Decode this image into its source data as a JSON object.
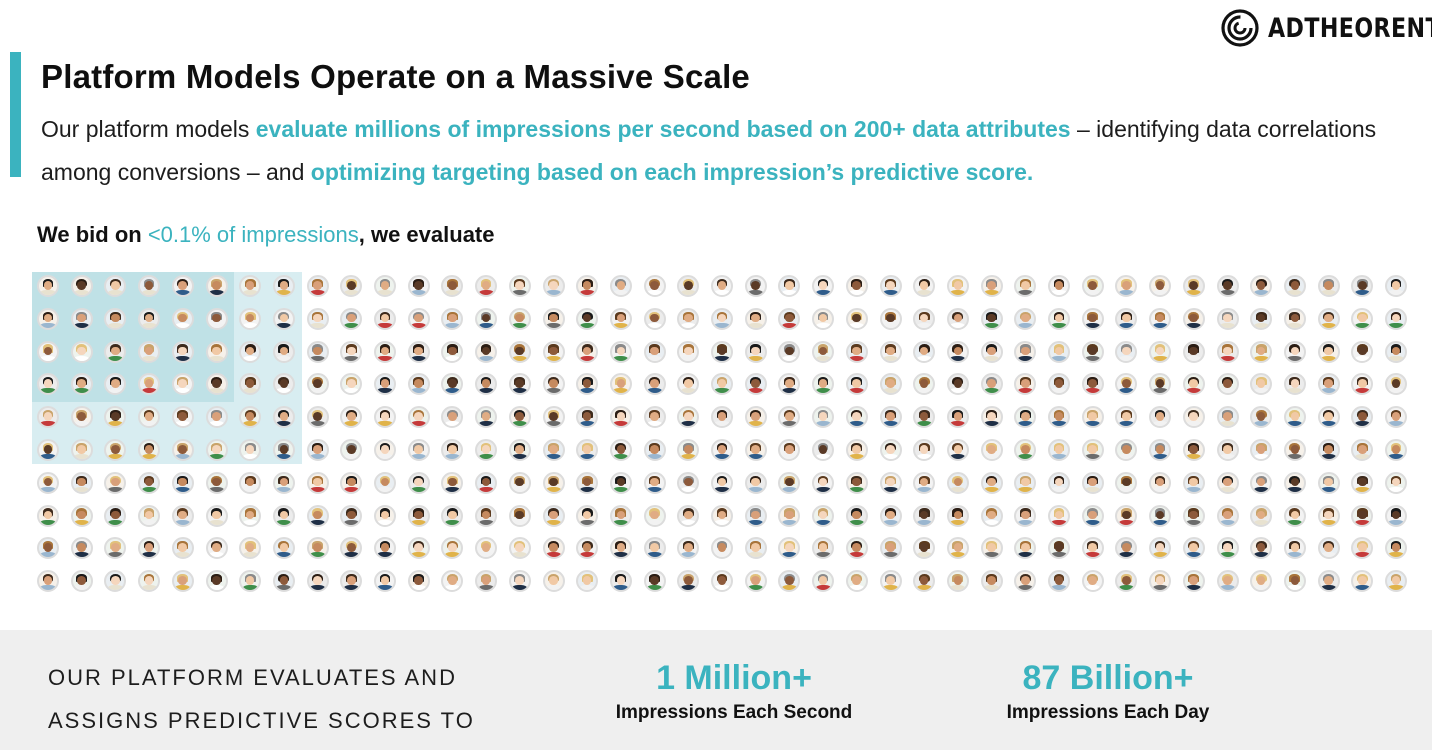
{
  "brand": {
    "name": "ADTHEORENT",
    "trademark": "®"
  },
  "title": "Platform Models Operate on a Massive Scale",
  "subtitle": {
    "part1": "Our platform models ",
    "highlight1": "evaluate millions of impressions per second based on 200+ data attributes",
    "part2": " – identifying data correlations among conversions – and ",
    "highlight2": "optimizing targeting based on each impression’s predictive score."
  },
  "bid_line": {
    "prefix": "We bid on ",
    "highlight": "<0.1% of impressions",
    "suffix": ", we evaluate"
  },
  "colors": {
    "accent": "#3bb3bf",
    "panel_bg": "#efefef",
    "highlight_bg": "#d8edf1"
  },
  "icons": {
    "logo": "adtheorent-spiral-icon",
    "person": "person-avatar-icon"
  },
  "face_grid": {
    "rows": 10,
    "cols": 41,
    "highlight_cols": 8,
    "highlight_rows": 6
  },
  "bottom_panel": {
    "line1": "OUR PLATFORM EVALUATES AND",
    "line2": "ASSIGNS PREDICTIVE SCORES TO",
    "stats": [
      {
        "value": "1 Million+",
        "label": "Impressions Each Second"
      },
      {
        "value": "87 Billion+",
        "label": "Impressions Each Day"
      }
    ]
  }
}
